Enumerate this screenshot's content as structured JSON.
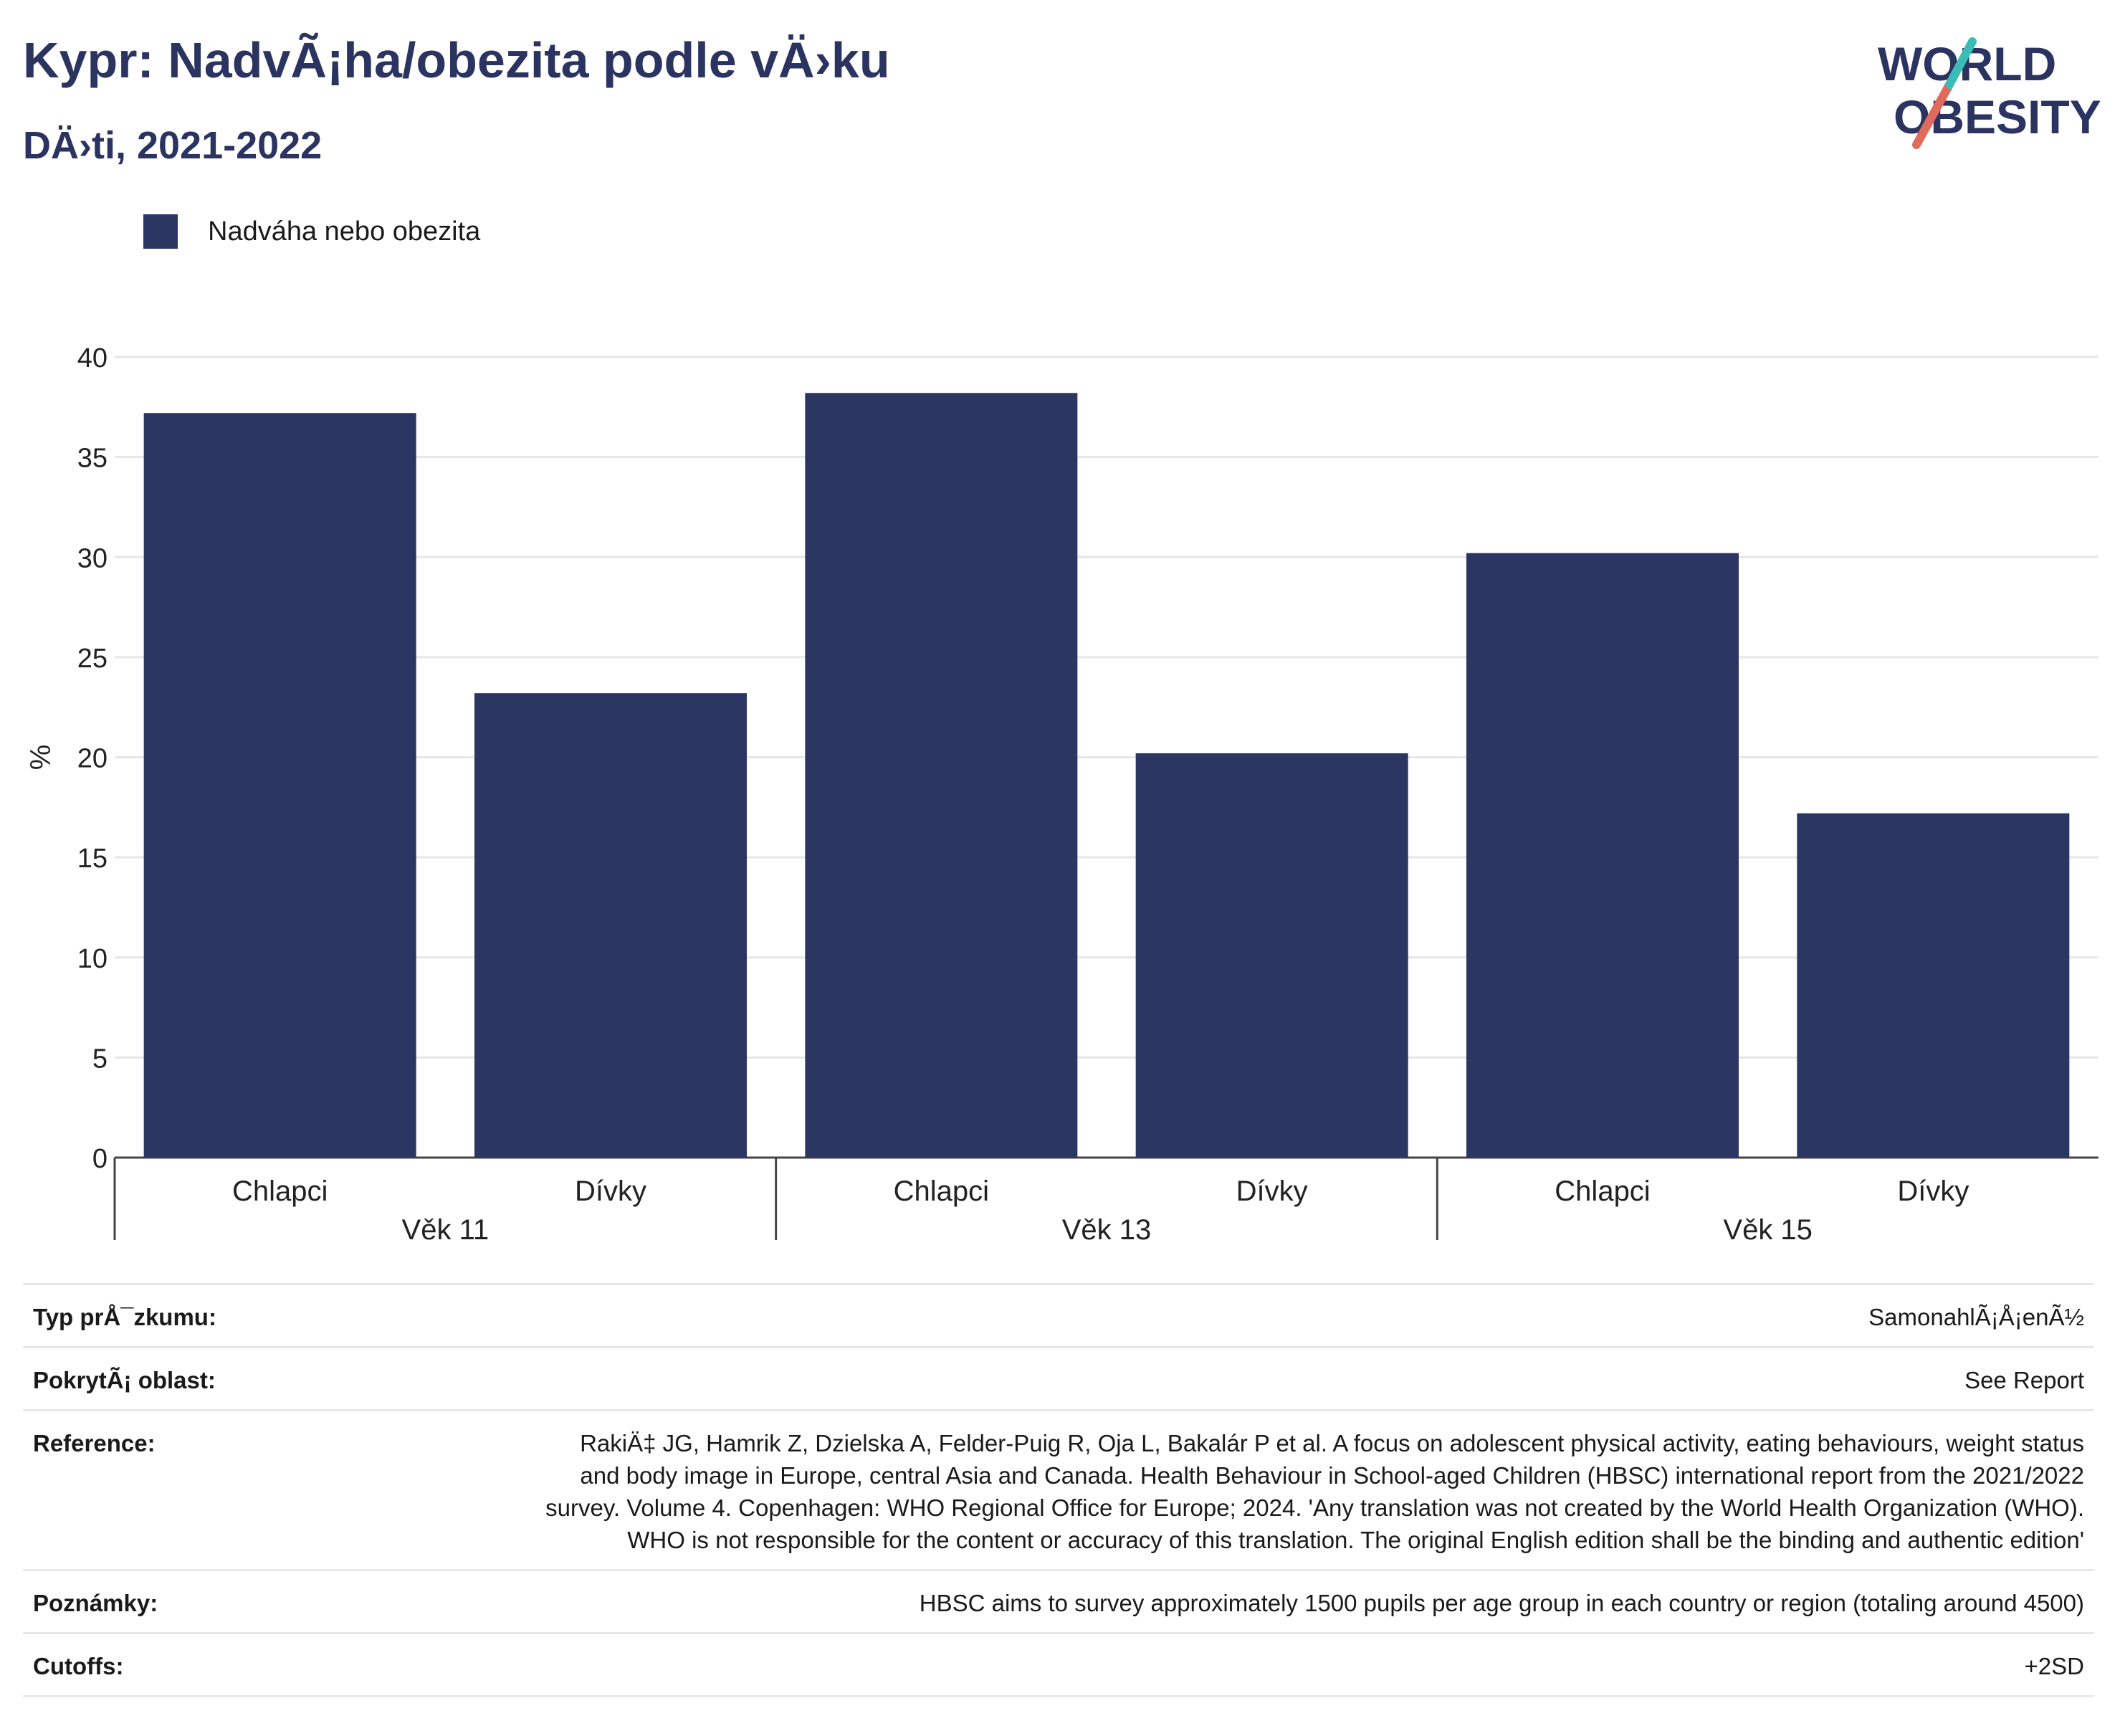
{
  "header": {
    "title": "Kypr: NadvÃ¡ha/obezita podle vÄ›ku",
    "subtitle": "DÄ›ti, 2021-2022"
  },
  "logo": {
    "line1": "WORLD",
    "line2": "OBESITY"
  },
  "legend": {
    "label": "Nadváha nebo obezita",
    "color": "#2b3663"
  },
  "chart_data": {
    "type": "bar",
    "ylabel": "%",
    "ylim": [
      0,
      40
    ],
    "yticks": [
      0,
      5,
      10,
      15,
      20,
      25,
      30,
      35,
      40
    ],
    "grid": true,
    "legend_position": "top-left",
    "groups": [
      {
        "label": "Věk 11",
        "categories": [
          "Chlapci",
          "Dívky"
        ],
        "values": [
          37.2,
          23.2
        ]
      },
      {
        "label": "Věk 13",
        "categories": [
          "Chlapci",
          "Dívky"
        ],
        "values": [
          38.2,
          20.2
        ]
      },
      {
        "label": "Věk 15",
        "categories": [
          "Chlapci",
          "Dívky"
        ],
        "values": [
          30.2,
          17.2
        ]
      }
    ],
    "series": [
      {
        "name": "Nadváha nebo obezita",
        "color": "#2b3663",
        "values": [
          37.2,
          23.2,
          38.2,
          20.2,
          30.2,
          17.2
        ]
      }
    ]
  },
  "info": {
    "survey_type": {
      "label": "Typ prÅ¯zkumu:",
      "value": "SamonahlÃ¡Å¡enÃ½"
    },
    "coverage": {
      "label": "PokrytÃ¡ oblast:",
      "value": "See Report"
    },
    "reference": {
      "label": "Reference:",
      "value": "RakiÄ‡ JG, Hamrik Z, Dzielska A, Felder-Puig R, Oja L, Bakalár P et al. A focus on adolescent physical activity, eating behaviours, weight status and body image in Europe, central Asia and Canada. Health Behaviour in School-aged Children (HBSC) international report from the 2021/2022 survey. Volume 4. Copenhagen: WHO Regional Office for Europe; 2024. 'Any translation was not created by the World Health Organization (WHO). WHO is not responsible for the content or accuracy of this translation. The original English edition shall be the binding and authentic edition'"
    },
    "notes": {
      "label": "Poznámky:",
      "value": "HBSC aims to survey approximately 1500 pupils per age group in each country or region (totaling around 4500)"
    },
    "cutoffs": {
      "label": "Cutoffs:",
      "value": "+2SD"
    }
  }
}
